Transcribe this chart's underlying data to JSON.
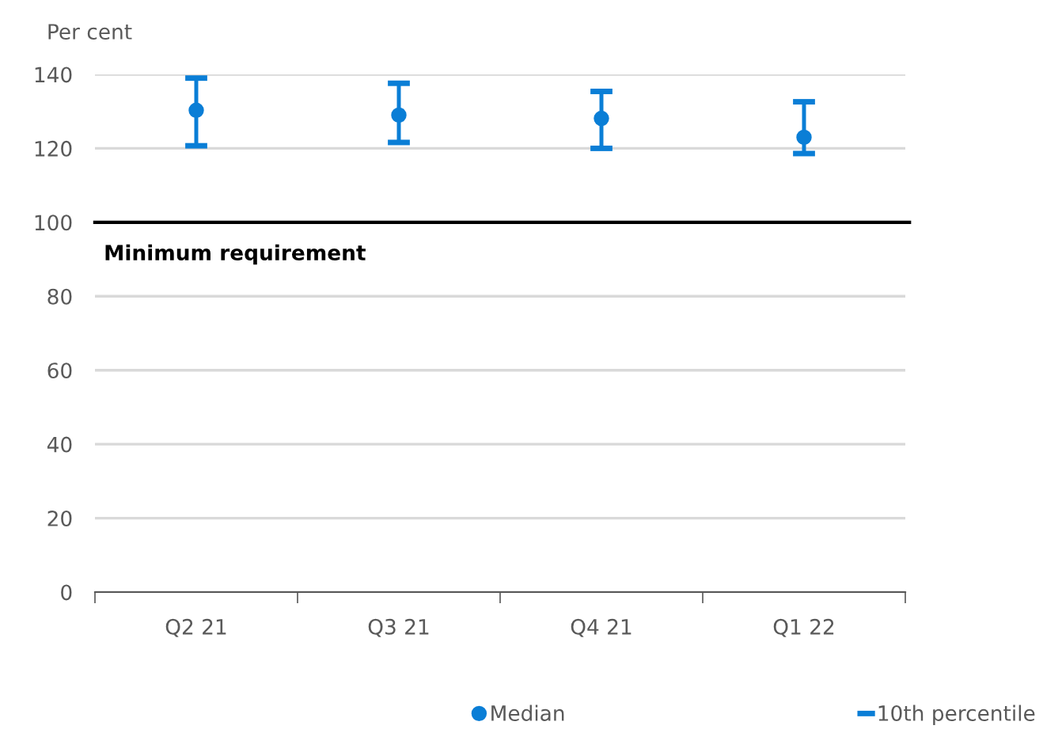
{
  "chart_data": {
    "type": "scatter",
    "ylabel": "Per cent",
    "categories": [
      "Q2 21",
      "Q3 21",
      "Q4 21",
      "Q1 22"
    ],
    "series": [
      {
        "name": "Median",
        "color": "#0a7ed6",
        "marker": "circle",
        "values": [
          130.3,
          129,
          128.1,
          123
        ],
        "errors": [
          [
            120.7,
            139.0
          ],
          [
            121.6,
            137.6
          ],
          [
            120,
            135.4
          ],
          [
            118.6,
            132.6
          ]
        ]
      }
    ],
    "annotations": [
      "10th percentile"
    ],
    "ylim": [
      0,
      140
    ],
    "yticks": [
      0,
      20,
      40,
      60,
      80,
      100,
      120,
      140
    ],
    "grid": "y",
    "legend": "bottom",
    "ref_lines": [
      {
        "axis": "y",
        "value": 100,
        "label": "Minimum requirement",
        "color": "#000000"
      }
    ]
  }
}
